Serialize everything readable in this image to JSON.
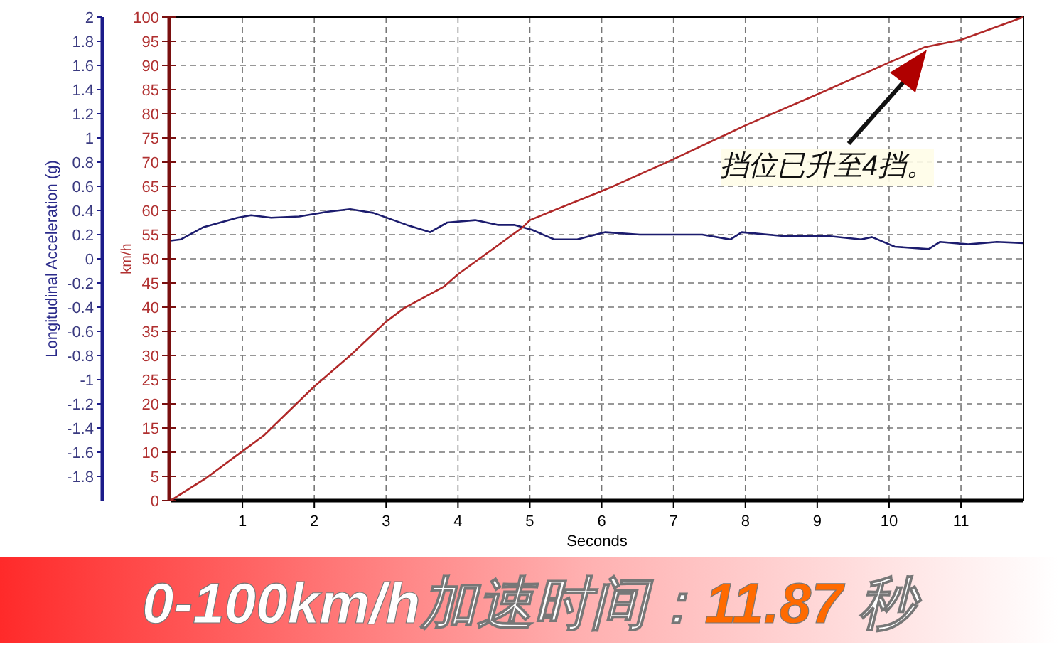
{
  "chart_data": {
    "type": "line",
    "xlabel": "Seconds",
    "ylabel": "Longitudinal Acceleration (g)",
    "y2label": "km/h",
    "xlim": [
      0,
      11.87
    ],
    "xticks": [
      1,
      2,
      3,
      4,
      5,
      6,
      7,
      8,
      9,
      10,
      11
    ],
    "ylim": [
      -2,
      2
    ],
    "yticks": [
      -1.8,
      -1.6,
      -1.4,
      -1.2,
      -1,
      -0.8,
      -0.6,
      -0.4,
      -0.2,
      0,
      0.2,
      0.4,
      0.6,
      0.8,
      1,
      1.2,
      1.4,
      1.6,
      1.8,
      2
    ],
    "y2lim": [
      0,
      100
    ],
    "y2ticks": [
      0,
      5,
      10,
      15,
      20,
      25,
      30,
      35,
      40,
      45,
      50,
      55,
      60,
      65,
      70,
      75,
      80,
      85,
      90,
      95,
      100
    ],
    "grid": true,
    "line_style": "solid",
    "marker": "none",
    "series": [
      {
        "color": "#1c1c6e",
        "axis": "y",
        "x": [
          0,
          0.14,
          0.45,
          0.93,
          1.12,
          1.4,
          1.79,
          2.19,
          2.5,
          2.82,
          3.29,
          3.61,
          3.85,
          4.24,
          4.56,
          4.79,
          5.03,
          5.34,
          5.66,
          6.05,
          6.53,
          7.4,
          7.79,
          7.95,
          8.5,
          9.13,
          9.61,
          9.76,
          10.08,
          10.55,
          10.71,
          11.1,
          11.5,
          11.87
        ],
        "values": [
          0.15,
          0.16,
          0.26,
          0.34,
          0.36,
          0.34,
          0.35,
          0.39,
          0.41,
          0.38,
          0.28,
          0.22,
          0.3,
          0.32,
          0.28,
          0.28,
          0.24,
          0.16,
          0.16,
          0.22,
          0.2,
          0.2,
          0.16,
          0.22,
          0.19,
          0.19,
          0.16,
          0.18,
          0.1,
          0.08,
          0.14,
          0.12,
          0.14,
          0.13
        ]
      },
      {
        "color": "#b02828",
        "axis": "y2",
        "x": [
          0,
          0.5,
          1,
          1.3,
          2,
          2.5,
          3,
          3.25,
          3.8,
          4,
          4.9,
          5,
          6,
          6.13,
          7,
          8,
          9,
          10,
          10.5,
          11,
          11.87
        ],
        "values": [
          0,
          4.7,
          10.2,
          13.5,
          23.6,
          30,
          37,
          39.8,
          44.2,
          46.8,
          56.5,
          58,
          64,
          64.8,
          70.6,
          77.6,
          84,
          90.6,
          93.8,
          95.3,
          100
        ]
      }
    ],
    "annotations": [
      "挡位已升至4挡。",
      "0-100km/h加速时间：11.87 秒"
    ]
  }
}
